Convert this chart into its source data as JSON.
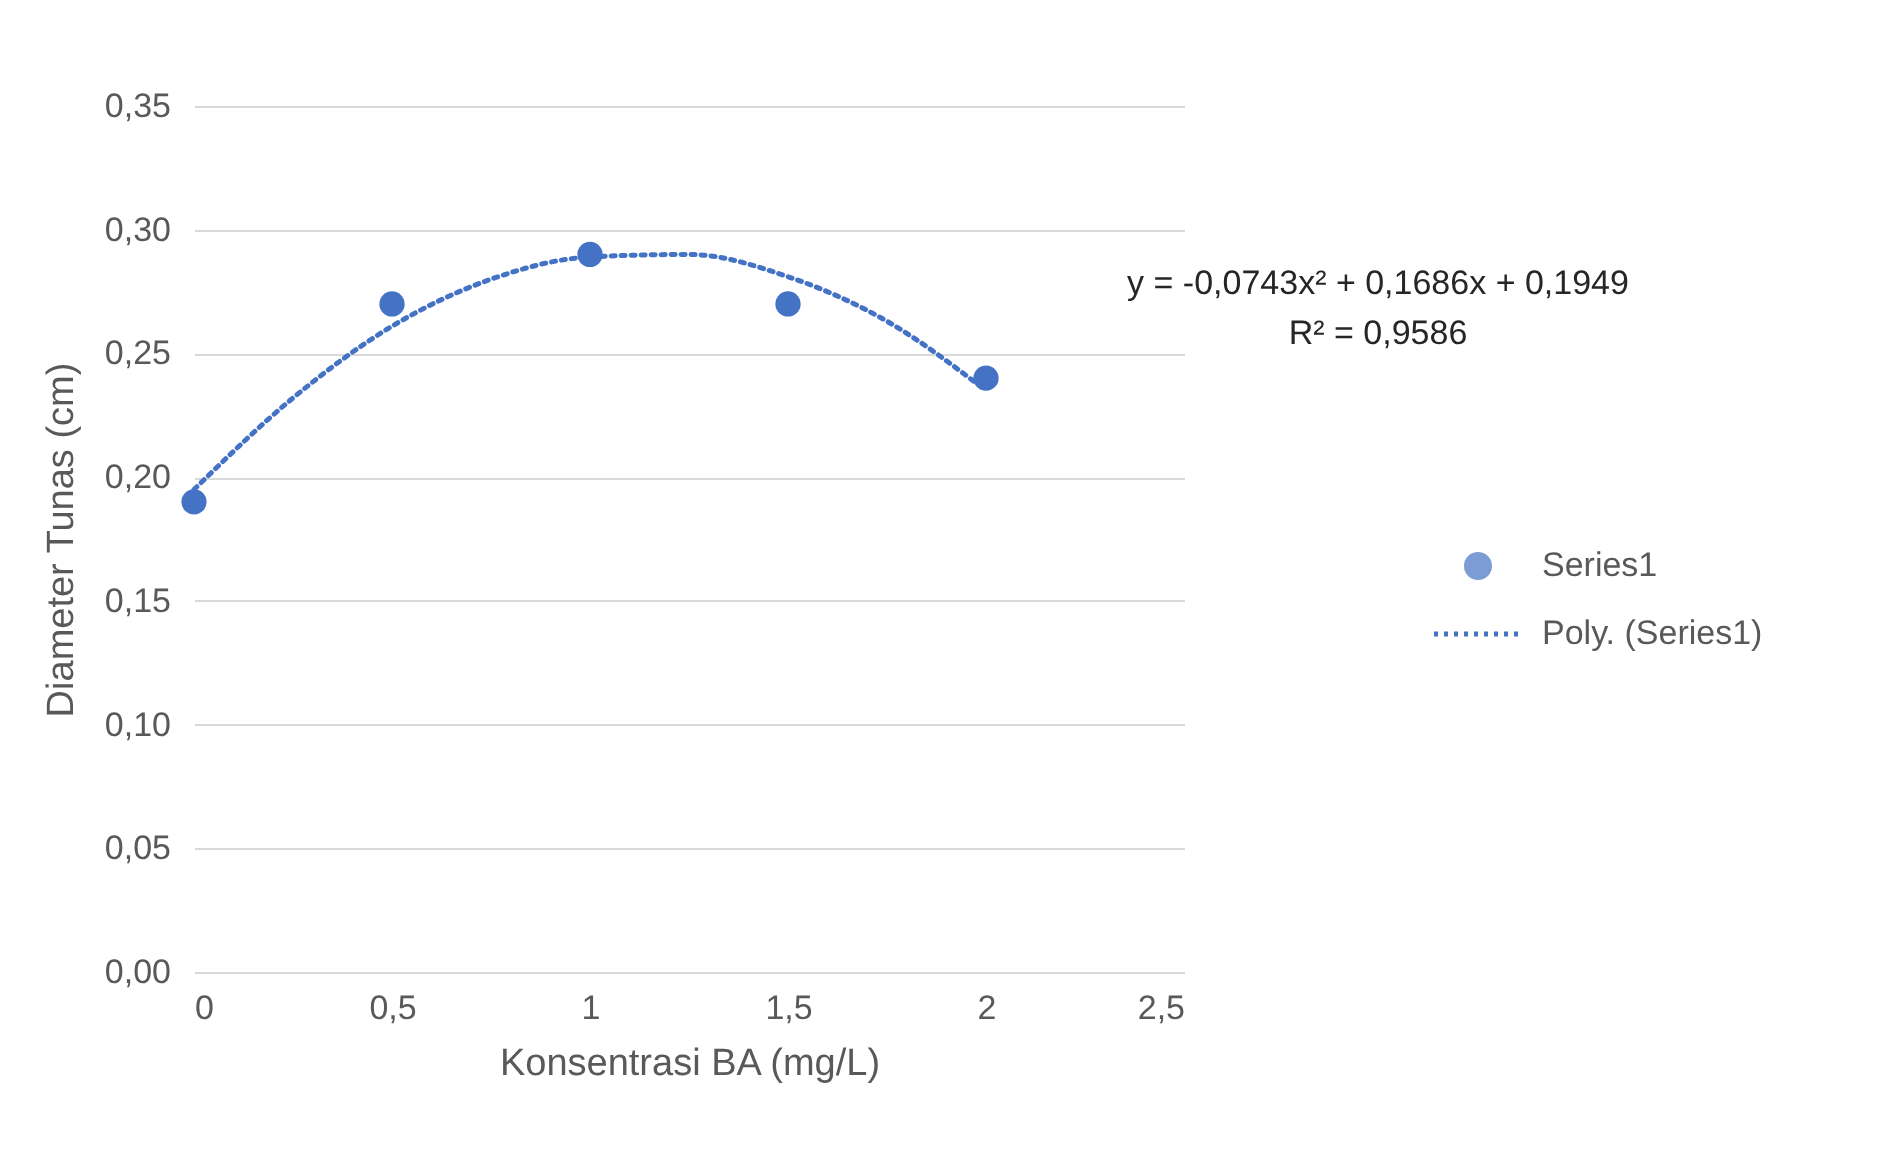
{
  "chart_data": {
    "type": "scatter",
    "xlabel": "Konsentrasi BA (mg/L)",
    "ylabel": "Diameter Tunas (cm)",
    "x": [
      0,
      0.5,
      1,
      1.5,
      2
    ],
    "series": [
      {
        "name": "Series1",
        "color": "#4472c4",
        "marker": "circle",
        "values": [
          0.19,
          0.27,
          0.29,
          0.27,
          0.24
        ]
      },
      {
        "name": "Poly. (Series1)",
        "type": "line",
        "color": "#4472c4",
        "marker": "none",
        "line_style": "dotted",
        "x": [
          0,
          0.25,
          0.5,
          0.75,
          1,
          1.25,
          1.5,
          1.75,
          2
        ],
        "values": [
          0.195,
          0.232,
          0.261,
          0.28,
          0.289,
          0.29,
          0.281,
          0.263,
          0.235
        ]
      }
    ],
    "xlim": [
      0,
      2.5
    ],
    "xticks": [
      0,
      {
        "value": 0.5,
        "label": "0,5"
      },
      1,
      {
        "value": 1.5,
        "label": "1,5"
      },
      2,
      {
        "value": 2.5,
        "label": "2,5"
      }
    ],
    "ylim": [
      0,
      0.35
    ],
    "yticks": [
      {
        "value": 0,
        "label": "0,00"
      },
      {
        "value": 0.05,
        "label": "0,05"
      },
      {
        "value": 0.1,
        "label": "0,10"
      },
      {
        "value": 0.15,
        "label": "0,15"
      },
      {
        "value": 0.2,
        "label": "0,20"
      },
      {
        "value": 0.25,
        "label": "0,25"
      },
      {
        "value": 0.3,
        "label": "0,30"
      },
      {
        "value": 0.35,
        "label": "0,35"
      }
    ],
    "grid": "y",
    "legend": "right",
    "annotations": [
      "y = -0,0743x² + 0,1686x + 0,1949",
      "R² = 0,9586"
    ]
  }
}
